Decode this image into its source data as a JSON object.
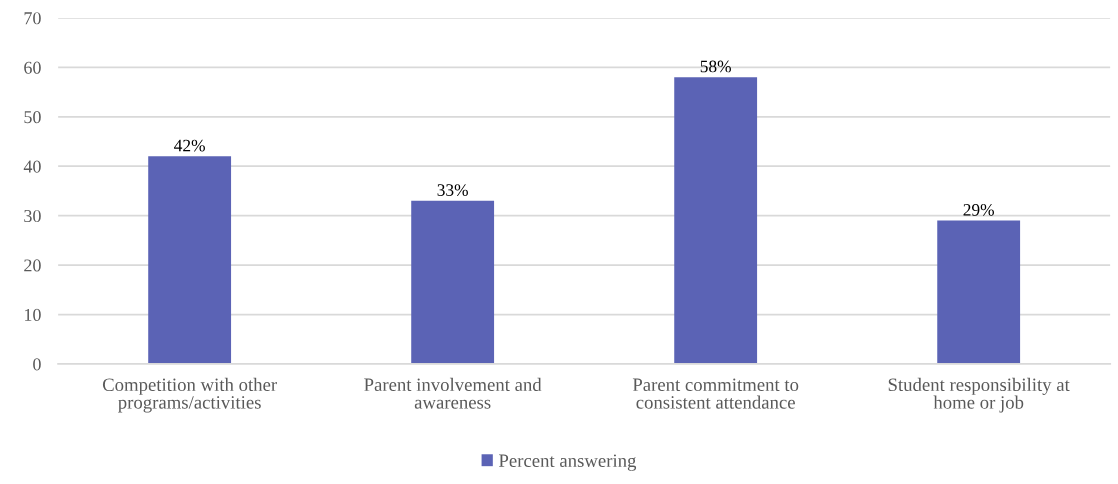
{
  "chart_data": {
    "type": "bar",
    "categories": [
      "Competition with other\nprograms/activities",
      "Parent involvement and\nawareness",
      "Parent commitment to\nconsistent attendance",
      "Student responsibility at\nhome or job"
    ],
    "series": [
      {
        "name": "Percent answering",
        "color": "#5b63b5",
        "values": [
          42,
          33,
          58,
          29
        ],
        "value_labels": [
          "42%",
          "33%",
          "58%",
          "29%"
        ]
      }
    ],
    "ylim": [
      0,
      70
    ],
    "yticks": [
      0,
      10,
      20,
      30,
      40,
      50,
      60,
      70
    ],
    "grid": "y",
    "legend": "bottom"
  }
}
